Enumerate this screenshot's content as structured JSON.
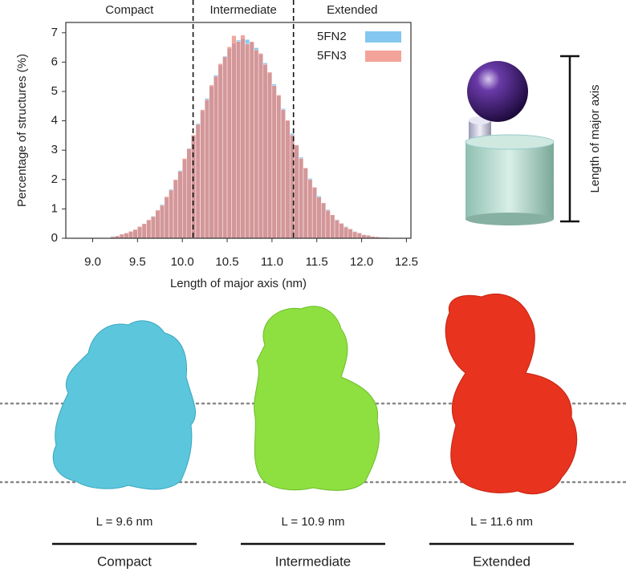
{
  "chart_data": {
    "type": "histogram",
    "xlabel": "Length of major axis (nm)",
    "ylabel": "Percentage of structures (%)",
    "bins": [
      9.2,
      9.25,
      9.3,
      9.35,
      9.4,
      9.45,
      9.5,
      9.55,
      9.6,
      9.65,
      9.7,
      9.75,
      9.8,
      9.85,
      9.9,
      9.95,
      10.0,
      10.05,
      10.1,
      10.15,
      10.2,
      10.25,
      10.3,
      10.35,
      10.4,
      10.45,
      10.5,
      10.55,
      10.6,
      10.65,
      10.7,
      10.75,
      10.8,
      10.85,
      10.9,
      10.95,
      11.0,
      11.05,
      11.1,
      11.15,
      11.2,
      11.25,
      11.3,
      11.35,
      11.4,
      11.45,
      11.5,
      11.55,
      11.6,
      11.65,
      11.7,
      11.75,
      11.8,
      11.85,
      11.9,
      11.95,
      12.0,
      12.05,
      12.1,
      12.15,
      12.2,
      12.25,
      12.3
    ],
    "series": [
      {
        "name": "5FN2",
        "color": "#5bb4ea",
        "values": [
          0.07,
          0.09,
          0.13,
          0.17,
          0.22,
          0.29,
          0.38,
          0.48,
          0.61,
          0.76,
          0.94,
          1.15,
          1.39,
          1.67,
          1.97,
          2.31,
          2.68,
          3.07,
          3.49,
          3.91,
          4.34,
          4.76,
          5.17,
          5.56,
          5.9,
          6.21,
          6.46,
          6.64,
          6.75,
          6.8,
          6.77,
          6.67,
          6.49,
          6.26,
          5.97,
          5.63,
          5.25,
          4.85,
          4.42,
          4.0,
          3.57,
          3.16,
          2.76,
          2.38,
          2.04,
          1.72,
          1.44,
          1.19,
          0.98,
          0.79,
          0.64,
          0.5,
          0.4,
          0.31,
          0.24,
          0.18,
          0.13,
          0.1,
          0.07,
          0.05,
          0.04,
          0.03
        ]
      },
      {
        "name": "5FN3",
        "color": "#f08478",
        "values": [
          0.05,
          0.08,
          0.14,
          0.18,
          0.24,
          0.3,
          0.4,
          0.5,
          0.63,
          0.74,
          0.96,
          1.12,
          1.42,
          1.64,
          2.0,
          2.28,
          2.72,
          3.05,
          3.52,
          3.88,
          4.38,
          4.72,
          5.22,
          5.52,
          5.95,
          6.18,
          6.52,
          6.9,
          6.7,
          6.92,
          6.62,
          6.7,
          6.42,
          6.3,
          5.92,
          5.66,
          5.2,
          4.88,
          4.38,
          4.02,
          3.52,
          3.18,
          2.72,
          2.4,
          2.0,
          1.74,
          1.4,
          1.21,
          0.95,
          0.8,
          0.62,
          0.51,
          0.38,
          0.32,
          0.22,
          0.18,
          0.12,
          0.1,
          0.06,
          0.05,
          0.03,
          0.03
        ]
      }
    ],
    "xlim": [
      8.7,
      12.55
    ],
    "ylim": [
      0,
      7.35
    ],
    "xticks": [
      {
        "value": 9,
        "label": "9.0"
      },
      9.5,
      {
        "value": 10,
        "label": "10.0"
      },
      10.5,
      {
        "value": 11,
        "label": "11.0"
      },
      11.5,
      {
        "value": 12,
        "label": "12.0"
      },
      12.5
    ],
    "yticks": [
      0,
      1,
      2,
      3,
      4,
      5,
      6,
      7
    ],
    "legend": "upper right",
    "boundaries": [
      10.12,
      11.24
    ],
    "regions": [
      "Compact",
      "Intermediate",
      "Extended"
    ]
  },
  "schematic": {
    "label": "Length of major axis"
  },
  "panels": [
    {
      "length_label": "L = 9.6 nm",
      "state": "Compact"
    },
    {
      "length_label": "L = 10.9 nm",
      "state": "Intermediate"
    },
    {
      "length_label": "L = 11.6 nm",
      "state": "Extended"
    }
  ]
}
